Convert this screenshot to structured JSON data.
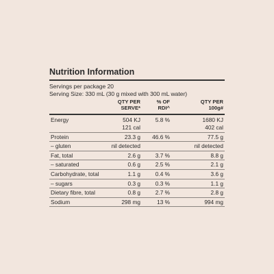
{
  "title": "Nutrition Information",
  "servings_per_package": "Servings per package 20",
  "serving_size": "Serving Size: 330 mL (30 g mixed with 300 mL water)",
  "table": {
    "header": [
      null,
      "QTY PER\nSERVE*",
      "% OF\nRDI^",
      "QTY PER\n100g#"
    ],
    "rows": [
      [
        "Energy",
        "504 KJ",
        "5.8 %",
        "1680 KJ"
      ],
      [
        null,
        "121 cal",
        null,
        "402 cal"
      ],
      [
        "Protein",
        "23.3 g",
        "46.6 %",
        "77.5 g"
      ],
      [
        "– gluten",
        "nil detected",
        null,
        "nil detected"
      ],
      [
        "Fat, total",
        "2.6 g",
        "3.7 %",
        "8.8 g"
      ],
      [
        "– saturated",
        "0.6 g",
        "2.5 %",
        "2.1 g"
      ],
      [
        "Carbohydrate, total",
        "1.1 g",
        "0.4 %",
        "3.6 g"
      ],
      [
        "– sugars",
        "0.3 g",
        "0.3 %",
        "1.1 g"
      ],
      [
        "Dietary fibre, total",
        "0.8 g",
        "2.7 %",
        "2.8 g"
      ],
      [
        "Sodium",
        "298 mg",
        "13 %",
        "994 mg"
      ]
    ]
  }
}
